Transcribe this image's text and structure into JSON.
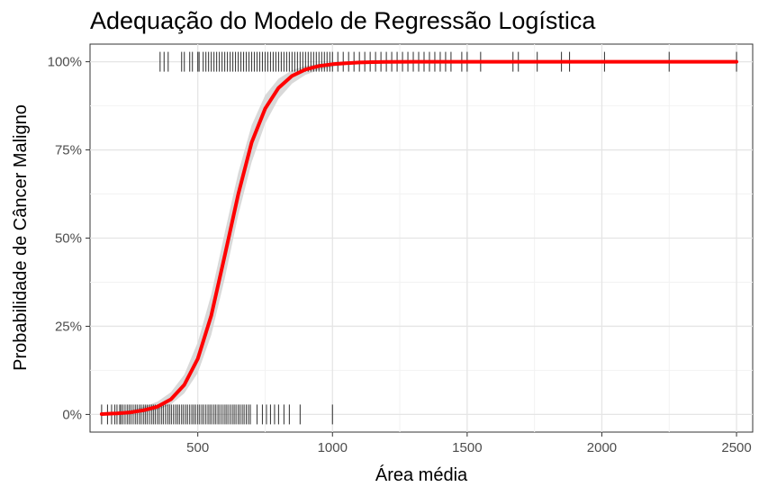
{
  "chart_data": {
    "type": "line",
    "title": "Adequação do Modelo de Regressão Logística",
    "xlabel": "Área média",
    "ylabel": "Probabilidade de Câncer Maligno",
    "xlim": [
      100,
      2560
    ],
    "ylim": [
      -0.05,
      1.05
    ],
    "x_ticks": [
      500,
      1000,
      1500,
      2000,
      2500
    ],
    "x_tick_labels": [
      "500",
      "1000",
      "1500",
      "2000",
      "2500"
    ],
    "y_ticks": [
      0,
      0.25,
      0.5,
      0.75,
      1
    ],
    "y_tick_labels": [
      "0%",
      "25%",
      "50%",
      "75%",
      "100%"
    ],
    "grid": true,
    "series": [
      {
        "kind": "fitted-line",
        "color": "#ff0000",
        "x": [
          143,
          200,
          250,
          300,
          350,
          400,
          450,
          500,
          550,
          600,
          650,
          700,
          750,
          800,
          850,
          900,
          950,
          1000,
          1050,
          1100,
          1150,
          1200,
          1300,
          1400,
          1500,
          1750,
          2000,
          2250,
          2500
        ],
        "y": [
          0.001,
          0.003,
          0.006,
          0.012,
          0.022,
          0.043,
          0.084,
          0.158,
          0.28,
          0.45,
          0.624,
          0.771,
          0.867,
          0.926,
          0.96,
          0.978,
          0.988,
          0.993,
          0.996,
          0.998,
          0.999,
          0.9995,
          1,
          1,
          1,
          1,
          1,
          1,
          1
        ]
      },
      {
        "kind": "confidence-band",
        "color": "#d9d9d9",
        "x": [
          143,
          200,
          250,
          300,
          350,
          400,
          450,
          500,
          550,
          600,
          650,
          700,
          750,
          800,
          850,
          900,
          950,
          1000,
          1050,
          1100,
          1150,
          1200,
          1300,
          1400,
          1500,
          1750,
          2000,
          2250,
          2500
        ],
        "lower": [
          0,
          0,
          0.002,
          0.006,
          0.013,
          0.028,
          0.06,
          0.118,
          0.225,
          0.385,
          0.565,
          0.715,
          0.825,
          0.895,
          0.938,
          0.963,
          0.977,
          0.986,
          0.991,
          0.995,
          0.997,
          0.998,
          0.999,
          1,
          1,
          1,
          1,
          1,
          1
        ],
        "upper": [
          0.004,
          0.007,
          0.012,
          0.022,
          0.036,
          0.063,
          0.113,
          0.205,
          0.34,
          0.515,
          0.685,
          0.82,
          0.905,
          0.952,
          0.976,
          0.988,
          0.994,
          0.997,
          0.999,
          1,
          1,
          1,
          1,
          1,
          1,
          1,
          1,
          1,
          1
        ]
      }
    ],
    "rug_points": {
      "y0_x": [
        143,
        165,
        180,
        192,
        200,
        210,
        215,
        222,
        230,
        238,
        245,
        252,
        260,
        268,
        275,
        283,
        290,
        298,
        305,
        312,
        320,
        328,
        335,
        342,
        350,
        357,
        365,
        372,
        380,
        388,
        395,
        402,
        410,
        418,
        425,
        432,
        440,
        447,
        455,
        462,
        470,
        478,
        485,
        492,
        500,
        507,
        515,
        522,
        530,
        538,
        545,
        552,
        560,
        567,
        575,
        582,
        590,
        598,
        605,
        612,
        620,
        628,
        635,
        642,
        650,
        657,
        665,
        672,
        680,
        688,
        695,
        720,
        740,
        755,
        770,
        785,
        800,
        820,
        840,
        880,
        1000
      ],
      "y1_x": [
        360,
        375,
        390,
        440,
        450,
        470,
        480,
        500,
        505,
        520,
        530,
        540,
        550,
        560,
        570,
        580,
        590,
        600,
        610,
        620,
        630,
        640,
        650,
        660,
        670,
        680,
        690,
        700,
        710,
        720,
        730,
        740,
        750,
        760,
        770,
        780,
        790,
        800,
        810,
        820,
        830,
        840,
        850,
        860,
        870,
        880,
        890,
        900,
        910,
        920,
        930,
        940,
        950,
        960,
        970,
        980,
        990,
        1000,
        1020,
        1040,
        1060,
        1080,
        1100,
        1120,
        1140,
        1160,
        1180,
        1200,
        1220,
        1240,
        1260,
        1280,
        1300,
        1320,
        1340,
        1360,
        1380,
        1400,
        1420,
        1440,
        1480,
        1500,
        1550,
        1670,
        1690,
        1760,
        1850,
        1880,
        2010,
        2250,
        2500
      ]
    }
  }
}
